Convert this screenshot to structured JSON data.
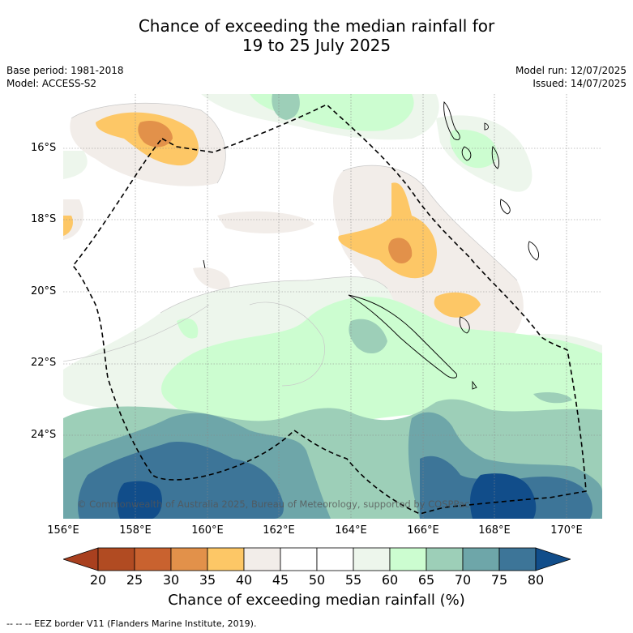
{
  "title_line1": "Chance of exceeding the median rainfall for",
  "title_line2": "19 to 25 July 2025",
  "base_period": "Base period: 1981-2018",
  "model": "Model: ACCESS-S2",
  "model_run": "Model run: 12/07/2025",
  "issued": "Issued: 14/07/2025",
  "lat_labels": [
    "16°S",
    "18°S",
    "20°S",
    "22°S",
    "24°S"
  ],
  "lon_labels": [
    "156°E",
    "158°E",
    "160°E",
    "162°E",
    "164°E",
    "166°E",
    "168°E",
    "170°E"
  ],
  "copyright": "© Commonwealth of Australia 2025, Bureau of Meteorology, supported by COSPPac",
  "colorbar": {
    "ticks": [
      "20",
      "25",
      "30",
      "35",
      "40",
      "45",
      "50",
      "55",
      "60",
      "65",
      "70",
      "75",
      "80"
    ],
    "colors": [
      "#a9401f",
      "#b14b22",
      "#c9622f",
      "#e2914a",
      "#fdc766",
      "#f2ede9",
      "#ffffff",
      "#ffffff",
      "#edf6ec",
      "#ccfdd0",
      "#9dcfb8",
      "#6ea6a9",
      "#3d7598",
      "#114d8a"
    ],
    "label": "Chance of exceeding median rainfall (%)"
  },
  "legend_text": "--  --  -- EEZ border V11 (Flanders Marine Institute, 2019)."
}
